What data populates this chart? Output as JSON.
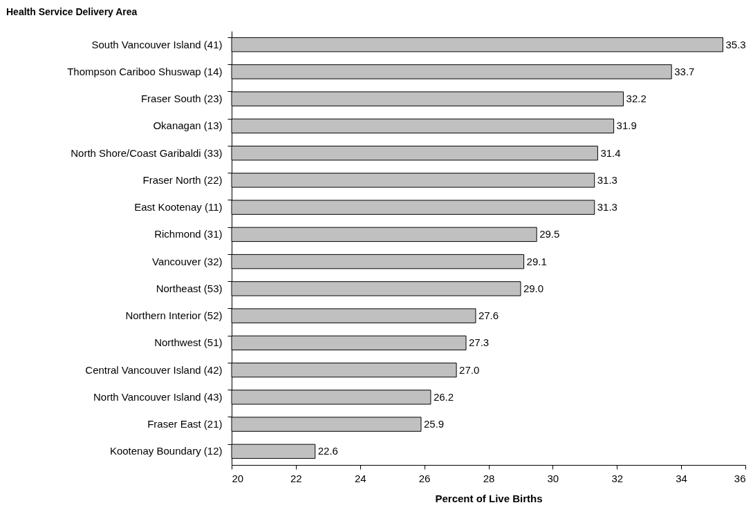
{
  "chart_data": {
    "type": "bar",
    "orientation": "horizontal",
    "xlabel": "Percent of Live Births",
    "annotations": [
      "Health Service Delivery Area"
    ],
    "categories": [
      "South Vancouver Island (41)",
      "Thompson Cariboo Shuswap (14)",
      "Fraser South (23)",
      "Okanagan (13)",
      "North Shore/Coast Garibaldi (33)",
      "Fraser North (22)",
      "East Kootenay (11)",
      "Richmond (31)",
      "Vancouver (32)",
      "Northeast (53)",
      "Northern Interior (52)",
      "Northwest (51)",
      "Central Vancouver Island (42)",
      "North Vancouver Island (43)",
      "Fraser East (21)",
      "Kootenay Boundary (12)"
    ],
    "values": [
      35.3,
      33.7,
      32.2,
      31.9,
      31.4,
      31.3,
      31.3,
      29.5,
      29.1,
      29.0,
      27.6,
      27.3,
      27.0,
      26.2,
      25.9,
      22.6
    ],
    "value_labels": [
      "35.3",
      "33.7",
      "32.2",
      "31.9",
      "31.4",
      "31.3",
      "31.3",
      "29.5",
      "29.1",
      "29.0",
      "27.6",
      "27.3",
      "27.0",
      "26.2",
      "25.9",
      "22.6"
    ],
    "color": "#c0c0c0",
    "xlim": [
      20,
      36
    ],
    "xticks": [
      20,
      22,
      24,
      26,
      28,
      30,
      32,
      34,
      36
    ],
    "grid": false
  }
}
